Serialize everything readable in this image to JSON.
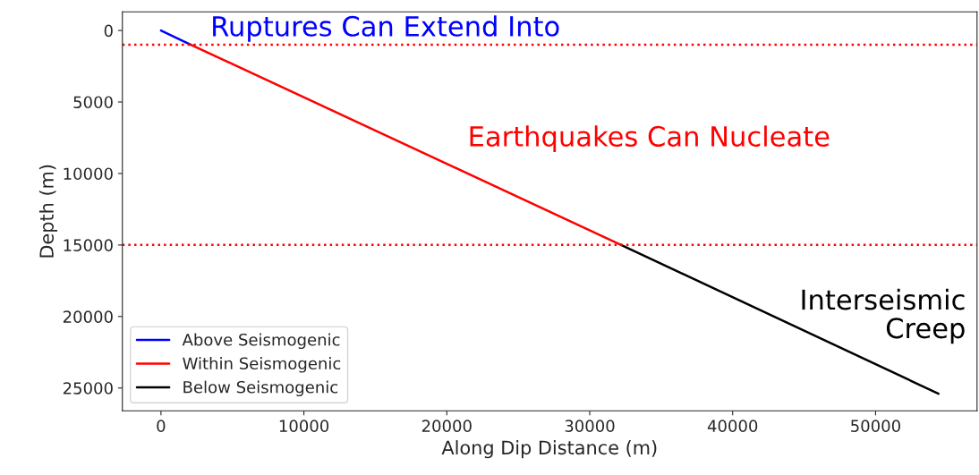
{
  "chart_data": {
    "type": "line",
    "xlabel": "Along Dip Distance (m)",
    "ylabel": "Depth (m)",
    "series": [
      {
        "name": "Above Seismogenic",
        "color": "#0000ff",
        "x": [
          0,
          2100
        ],
        "values": [
          0,
          1000
        ]
      },
      {
        "name": "Within Seismogenic",
        "color": "#ff0000",
        "x": [
          2100,
          32200
        ],
        "values": [
          1000,
          15000
        ]
      },
      {
        "name": "Below Seismogenic",
        "color": "#000000",
        "x": [
          32200,
          54400
        ],
        "values": [
          15000,
          25400
        ]
      }
    ],
    "xlim": [
      -2700,
      57100
    ],
    "ylim": [
      26600,
      -1300
    ],
    "xticks": [
      0,
      10000,
      20000,
      30000,
      40000,
      50000
    ],
    "yticks": [
      0,
      5000,
      10000,
      15000,
      20000,
      25000
    ],
    "ref_lines": [
      {
        "axis": "y",
        "value": 1000,
        "color": "#ff0000",
        "line_style": "dotted"
      },
      {
        "axis": "y",
        "value": 15000,
        "color": "#ff0000",
        "line_style": "dotted"
      }
    ],
    "annotations": [
      "Ruptures Can Extend Into",
      "Earthquakes Can Nucleate",
      "Interseismic\nCreep"
    ],
    "legend": "bottom left",
    "grid": false,
    "line_style": "solid",
    "marker": "none"
  }
}
